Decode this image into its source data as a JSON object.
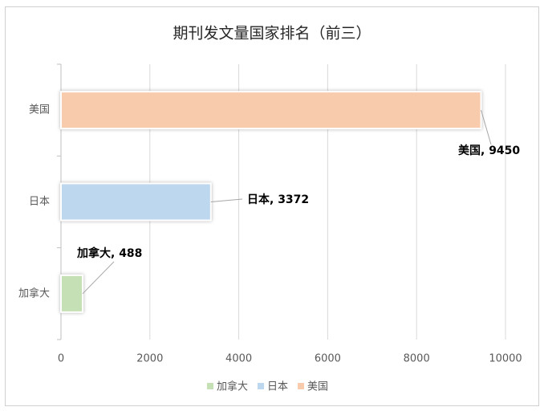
{
  "chart_data": {
    "type": "bar",
    "orientation": "horizontal",
    "title": "期刊发文量国家排名（前三）",
    "categories": [
      "加拿大",
      "日本",
      "美国"
    ],
    "values": [
      488,
      3372,
      9450
    ],
    "value_labels": [
      "加拿大, 488",
      "日本, 3372",
      "美国, 9450"
    ],
    "colors": [
      "#c5e0b4",
      "#bdd7ee",
      "#f8cbad"
    ],
    "xlim": [
      0,
      10000
    ],
    "xticks": [
      0,
      2000,
      4000,
      6000,
      8000,
      10000
    ],
    "grid": true,
    "legend": "bottom"
  }
}
